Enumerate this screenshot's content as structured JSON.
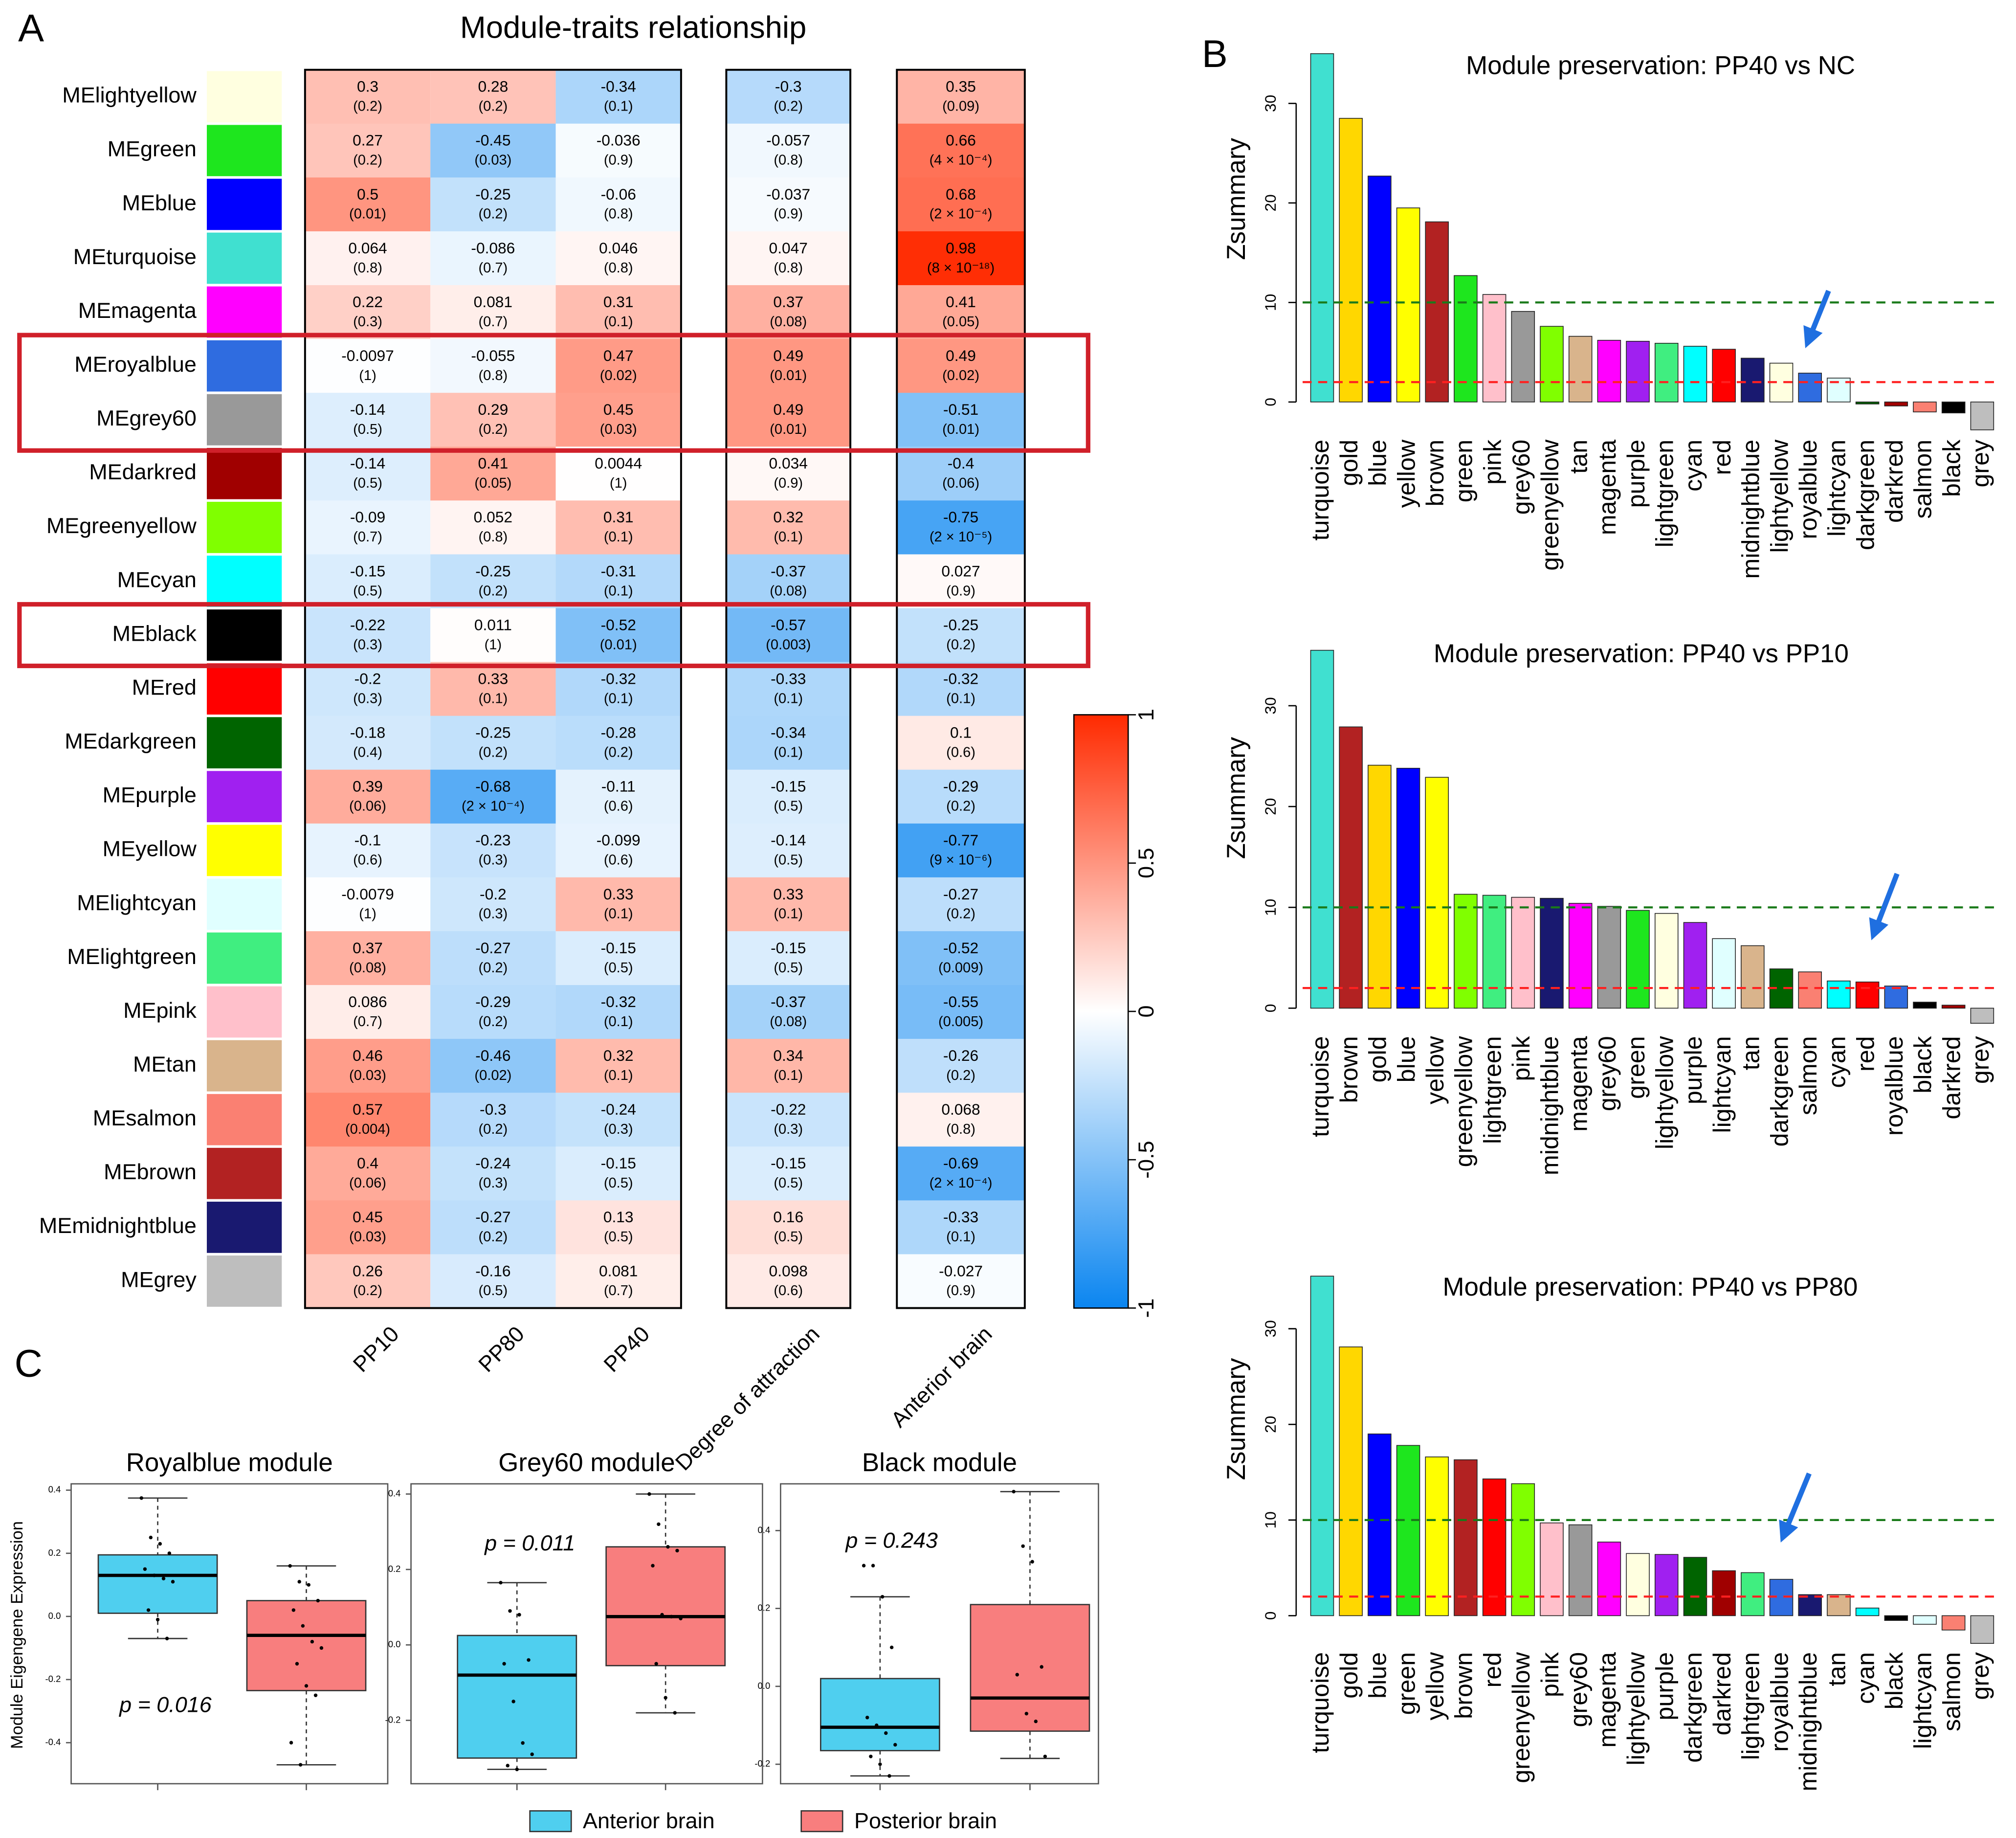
{
  "chart_data": [
    {
      "type": "heatmap",
      "panel": "A",
      "title": "Module-traits relationship",
      "rows": [
        "MElightyellow",
        "MEgreen",
        "MEblue",
        "MEturquoise",
        "MEmagenta",
        "MEroyalblue",
        "MEgrey60",
        "MEdarkred",
        "MEgreenyellow",
        "MEcyan",
        "MEblack",
        "MEred",
        "MEdarkgreen",
        "MEpurple",
        "MEyellow",
        "MElightcyan",
        "MElightgreen",
        "MEpink",
        "MEtan",
        "MEsalmon",
        "MEbrown",
        "MEmidnightblue",
        "MEgrey"
      ],
      "row_colors": [
        "#ffffe0",
        "#1ee61e",
        "#0000ff",
        "#40e0d0",
        "#ff00ff",
        "#2f6ce0",
        "#999999",
        "#a00000",
        "#80ff00",
        "#00ffff",
        "#000000",
        "#ff0000",
        "#006400",
        "#a020f0",
        "#ffff00",
        "#e0ffff",
        "#40ee80",
        "#ffc0cb",
        "#d9b48c",
        "#fa8072",
        "#b22222",
        "#191970",
        "#bebebe"
      ],
      "columns": [
        "PP10",
        "PP80",
        "PP40",
        "Degree of attraction",
        "Anterior brain"
      ],
      "values": [
        [
          0.3,
          0.28,
          -0.34,
          -0.3,
          0.35
        ],
        [
          0.27,
          -0.45,
          -0.036,
          -0.057,
          0.66
        ],
        [
          0.5,
          -0.25,
          -0.06,
          -0.037,
          0.68
        ],
        [
          0.064,
          -0.086,
          0.046,
          0.047,
          0.98
        ],
        [
          0.22,
          0.081,
          0.31,
          0.37,
          0.41
        ],
        [
          -0.0097,
          -0.055,
          0.47,
          0.49,
          0.49
        ],
        [
          -0.14,
          0.29,
          0.45,
          0.49,
          -0.51
        ],
        [
          -0.14,
          0.41,
          0.0044,
          0.034,
          -0.4
        ],
        [
          -0.09,
          0.052,
          0.31,
          0.32,
          -0.75
        ],
        [
          -0.15,
          -0.25,
          -0.31,
          -0.37,
          0.027
        ],
        [
          -0.22,
          0.011,
          -0.52,
          -0.57,
          -0.25
        ],
        [
          -0.2,
          0.33,
          -0.32,
          -0.33,
          -0.32
        ],
        [
          -0.18,
          -0.25,
          -0.28,
          -0.34,
          0.1
        ],
        [
          0.39,
          -0.68,
          -0.11,
          -0.15,
          -0.29
        ],
        [
          -0.1,
          -0.23,
          -0.099,
          -0.14,
          -0.77
        ],
        [
          -0.0079,
          -0.2,
          0.33,
          0.33,
          -0.27
        ],
        [
          0.37,
          -0.27,
          -0.15,
          -0.15,
          -0.52
        ],
        [
          0.086,
          -0.29,
          -0.32,
          -0.37,
          -0.55
        ],
        [
          0.46,
          -0.46,
          0.32,
          0.34,
          -0.26
        ],
        [
          0.57,
          -0.3,
          -0.24,
          -0.22,
          0.068
        ],
        [
          0.4,
          -0.24,
          -0.15,
          -0.15,
          -0.69
        ],
        [
          0.45,
          -0.27,
          0.13,
          0.16,
          -0.33
        ],
        [
          0.26,
          -0.16,
          0.081,
          0.098,
          -0.027
        ]
      ],
      "p_labels": [
        [
          "(0.2)",
          "(0.2)",
          "(0.1)",
          "(0.2)",
          "(0.09)"
        ],
        [
          "(0.2)",
          "(0.03)",
          "(0.9)",
          "(0.8)",
          "(4 × 10⁻⁴)"
        ],
        [
          "(0.01)",
          "(0.2)",
          "(0.8)",
          "(0.9)",
          "(2 × 10⁻⁴)"
        ],
        [
          "(0.8)",
          "(0.7)",
          "(0.8)",
          "(0.8)",
          "(8 × 10⁻¹⁸)"
        ],
        [
          "(0.3)",
          "(0.7)",
          "(0.1)",
          "(0.08)",
          "(0.05)"
        ],
        [
          "(1)",
          "(0.8)",
          "(0.02)",
          "(0.01)",
          "(0.02)"
        ],
        [
          "(0.5)",
          "(0.2)",
          "(0.03)",
          "(0.01)",
          "(0.01)"
        ],
        [
          "(0.5)",
          "(0.05)",
          "(1)",
          "(0.9)",
          "(0.06)"
        ],
        [
          "(0.7)",
          "(0.8)",
          "(0.1)",
          "(0.1)",
          "(2 × 10⁻⁵)"
        ],
        [
          "(0.5)",
          "(0.2)",
          "(0.1)",
          "(0.08)",
          "(0.9)"
        ],
        [
          "(0.3)",
          "(1)",
          "(0.01)",
          "(0.003)",
          "(0.2)"
        ],
        [
          "(0.3)",
          "(0.1)",
          "(0.1)",
          "(0.1)",
          "(0.1)"
        ],
        [
          "(0.4)",
          "(0.2)",
          "(0.2)",
          "(0.1)",
          "(0.6)"
        ],
        [
          "(0.06)",
          "(2 × 10⁻⁴)",
          "(0.6)",
          "(0.5)",
          "(0.2)"
        ],
        [
          "(0.6)",
          "(0.3)",
          "(0.6)",
          "(0.5)",
          "(9 × 10⁻⁶)"
        ],
        [
          "(1)",
          "(0.3)",
          "(0.1)",
          "(0.1)",
          "(0.2)"
        ],
        [
          "(0.08)",
          "(0.2)",
          "(0.5)",
          "(0.5)",
          "(0.009)"
        ],
        [
          "(0.7)",
          "(0.2)",
          "(0.1)",
          "(0.08)",
          "(0.005)"
        ],
        [
          "(0.03)",
          "(0.02)",
          "(0.1)",
          "(0.1)",
          "(0.2)"
        ],
        [
          "(0.004)",
          "(0.2)",
          "(0.3)",
          "(0.3)",
          "(0.8)"
        ],
        [
          "(0.06)",
          "(0.3)",
          "(0.5)",
          "(0.5)",
          "(2 × 10⁻⁴)"
        ],
        [
          "(0.03)",
          "(0.2)",
          "(0.5)",
          "(0.5)",
          "(0.1)"
        ],
        [
          "(0.2)",
          "(0.5)",
          "(0.7)",
          "(0.6)",
          "(0.9)"
        ]
      ],
      "zlim": [
        -1,
        1
      ],
      "zticks": [
        -1,
        -0.5,
        0,
        0.5,
        1
      ],
      "colormap": [
        "#0a85f0",
        "#ffffff",
        "#ff2a00"
      ]
    },
    {
      "type": "bar",
      "panel": "B",
      "title": "Module preservation: PP40 vs NC",
      "ylabel": "Zsummary",
      "categories": [
        "turquoise",
        "gold",
        "blue",
        "yellow",
        "brown",
        "green",
        "pink",
        "grey60",
        "greenyellow",
        "tan",
        "magenta",
        "purple",
        "lightgreen",
        "cyan",
        "red",
        "midnightblue",
        "lightyellow",
        "royalblue",
        "lightcyan",
        "darkgreen",
        "darkred",
        "salmon",
        "black",
        "grey"
      ],
      "values": [
        35,
        28.5,
        22.7,
        19.5,
        18.1,
        12.7,
        10.8,
        9.1,
        7.6,
        6.6,
        6.2,
        6.1,
        5.9,
        5.6,
        5.3,
        4.4,
        3.9,
        2.9,
        2.4,
        -0.2,
        -0.4,
        -1.0,
        -1.1,
        -2.8
      ],
      "colors": [
        "#40e0d0",
        "#ffd700",
        "#0000ff",
        "#ffff00",
        "#b22222",
        "#1ee61e",
        "#ffc0cb",
        "#999999",
        "#80ff00",
        "#d9b48c",
        "#ff00ff",
        "#a020f0",
        "#40ee80",
        "#00ffff",
        "#ff0000",
        "#191970",
        "#ffffe0",
        "#2f6ce0",
        "#e0ffff",
        "#006400",
        "#a00000",
        "#fa8072",
        "#000000",
        "#bebebe"
      ],
      "ylim": [
        -3,
        36
      ],
      "yticks": [
        0,
        10,
        20,
        30
      ],
      "reference_lines": [
        {
          "value": 10,
          "color": "#1a7a1a"
        },
        {
          "value": 2,
          "color": "#ff2020"
        }
      ]
    },
    {
      "type": "bar",
      "title": "Module preservation: PP40 vs PP10",
      "ylabel": "Zsummary",
      "categories": [
        "turquoise",
        "brown",
        "gold",
        "blue",
        "yellow",
        "greenyellow",
        "lightgreen",
        "pink",
        "midnightblue",
        "magenta",
        "grey60",
        "green",
        "lightyellow",
        "purple",
        "lightcyan",
        "tan",
        "darkgreen",
        "salmon",
        "cyan",
        "red",
        "royalblue",
        "black",
        "darkred",
        "grey"
      ],
      "values": [
        35.5,
        27.9,
        24.1,
        23.8,
        22.9,
        11.3,
        11.2,
        11.0,
        10.9,
        10.4,
        10.1,
        9.7,
        9.4,
        8.5,
        6.9,
        6.2,
        3.9,
        3.6,
        2.7,
        2.6,
        2.2,
        0.6,
        0.3,
        -1.5
      ],
      "colors": [
        "#40e0d0",
        "#b22222",
        "#ffd700",
        "#0000ff",
        "#ffff00",
        "#80ff00",
        "#40ee80",
        "#ffc0cb",
        "#191970",
        "#ff00ff",
        "#999999",
        "#1ee61e",
        "#ffffe0",
        "#a020f0",
        "#e0ffff",
        "#d9b48c",
        "#006400",
        "#fa8072",
        "#00ffff",
        "#ff0000",
        "#2f6ce0",
        "#000000",
        "#a00000",
        "#bebebe"
      ],
      "ylim": [
        -2,
        36
      ],
      "yticks": [
        0,
        10,
        20,
        30
      ],
      "reference_lines": [
        {
          "value": 10,
          "color": "#1a7a1a"
        },
        {
          "value": 2,
          "color": "#ff2020"
        }
      ]
    },
    {
      "type": "bar",
      "title": "Module preservation: PP40 vs PP80",
      "ylabel": "Zsummary",
      "categories": [
        "turquoise",
        "gold",
        "blue",
        "green",
        "yellow",
        "brown",
        "red",
        "greenyellow",
        "pink",
        "grey60",
        "magenta",
        "lightyellow",
        "purple",
        "darkgreen",
        "darkred",
        "lightgreen",
        "royalblue",
        "midnightblue",
        "tan",
        "cyan",
        "black",
        "lightcyan",
        "salmon",
        "grey"
      ],
      "values": [
        35.5,
        28.1,
        19.0,
        17.8,
        16.6,
        16.3,
        14.3,
        13.8,
        9.7,
        9.5,
        7.7,
        6.5,
        6.4,
        6.1,
        4.7,
        4.5,
        3.8,
        2.2,
        2.2,
        0.8,
        -0.5,
        -0.9,
        -1.5,
        -2.9
      ],
      "colors": [
        "#40e0d0",
        "#ffd700",
        "#0000ff",
        "#1ee61e",
        "#ffff00",
        "#b22222",
        "#ff0000",
        "#80ff00",
        "#ffc0cb",
        "#999999",
        "#ff00ff",
        "#ffffe0",
        "#a020f0",
        "#006400",
        "#a00000",
        "#40ee80",
        "#2f6ce0",
        "#191970",
        "#d9b48c",
        "#00ffff",
        "#000000",
        "#e0ffff",
        "#fa8072",
        "#bebebe"
      ],
      "ylim": [
        -3,
        36
      ],
      "yticks": [
        0,
        10,
        20,
        30
      ],
      "reference_lines": [
        {
          "value": 10,
          "color": "#1a7a1a"
        },
        {
          "value": 2,
          "color": "#ff2020"
        }
      ]
    },
    {
      "type": "box",
      "panel": "C",
      "title": "Royalblue module",
      "ylabel": "Module Eigengene Expression",
      "annotation": "p = 0.016",
      "ylim": [
        -0.53,
        0.42
      ],
      "yticks": [
        -0.4,
        -0.2,
        {
          "value": 0,
          "label": "0.0"
        },
        0.2,
        0.4
      ],
      "groups": [
        {
          "color": "#4fcfef",
          "min": -0.07,
          "q1": 0.01,
          "median": 0.13,
          "q3": 0.195,
          "max": 0.375,
          "points": [
            0.375,
            0.25,
            0.23,
            0.2,
            0.15,
            0.13,
            0.12,
            0.11,
            0.02,
            -0.01,
            -0.07
          ]
        },
        {
          "color": "#f87e7e",
          "min": -0.47,
          "q1": -0.235,
          "median": -0.06,
          "q3": 0.05,
          "max": 0.16,
          "points": [
            0.16,
            0.11,
            0.1,
            0.05,
            0.02,
            -0.03,
            -0.08,
            -0.1,
            -0.15,
            -0.22,
            -0.25,
            -0.4,
            -0.47
          ]
        }
      ]
    },
    {
      "type": "box",
      "title": "Grey60 module",
      "annotation": "p = 0.011",
      "ylim": [
        -0.368,
        0.427
      ],
      "yticks": [
        -0.2,
        {
          "value": 0,
          "label": "0.0"
        },
        0.2,
        0.4
      ],
      "groups": [
        {
          "color": "#4fcfef",
          "min": -0.33,
          "q1": -0.3,
          "median": -0.08,
          "q3": 0.025,
          "max": 0.165,
          "points": [
            0.165,
            0.09,
            0.08,
            -0.04,
            -0.05,
            -0.15,
            -0.26,
            -0.29,
            -0.32,
            -0.33
          ]
        },
        {
          "color": "#f87e7e",
          "min": -0.18,
          "q1": -0.055,
          "median": 0.075,
          "q3": 0.26,
          "max": 0.4,
          "points": [
            0.4,
            0.32,
            0.26,
            0.25,
            0.21,
            0.08,
            0.075,
            0.07,
            -0.05,
            -0.14,
            -0.18
          ]
        }
      ]
    },
    {
      "type": "box",
      "title": "Black module",
      "annotation": "p = 0.243",
      "ylim": [
        -0.25,
        0.52
      ],
      "yticks": [
        -0.2,
        {
          "value": 0,
          "label": "0.0"
        },
        0.2,
        0.4
      ],
      "groups": [
        {
          "color": "#4fcfef",
          "min": -0.23,
          "q1": -0.165,
          "median": -0.105,
          "q3": 0.02,
          "max": 0.23,
          "points": [
            0.31,
            0.31,
            0.23,
            0.1,
            -0.08,
            -0.1,
            -0.12,
            -0.15,
            -0.18,
            -0.2,
            -0.23
          ]
        },
        {
          "color": "#f87e7e",
          "min": -0.185,
          "q1": -0.115,
          "median": -0.03,
          "q3": 0.21,
          "max": 0.5,
          "points": [
            0.5,
            0.36,
            0.32,
            0.05,
            0.03,
            -0.07,
            -0.09,
            -0.18
          ]
        }
      ],
      "legend": [
        {
          "name": "Anterior brain",
          "color": "#4fcfef"
        },
        {
          "name": "Posterior brain",
          "color": "#f87e7e"
        }
      ]
    }
  ]
}
